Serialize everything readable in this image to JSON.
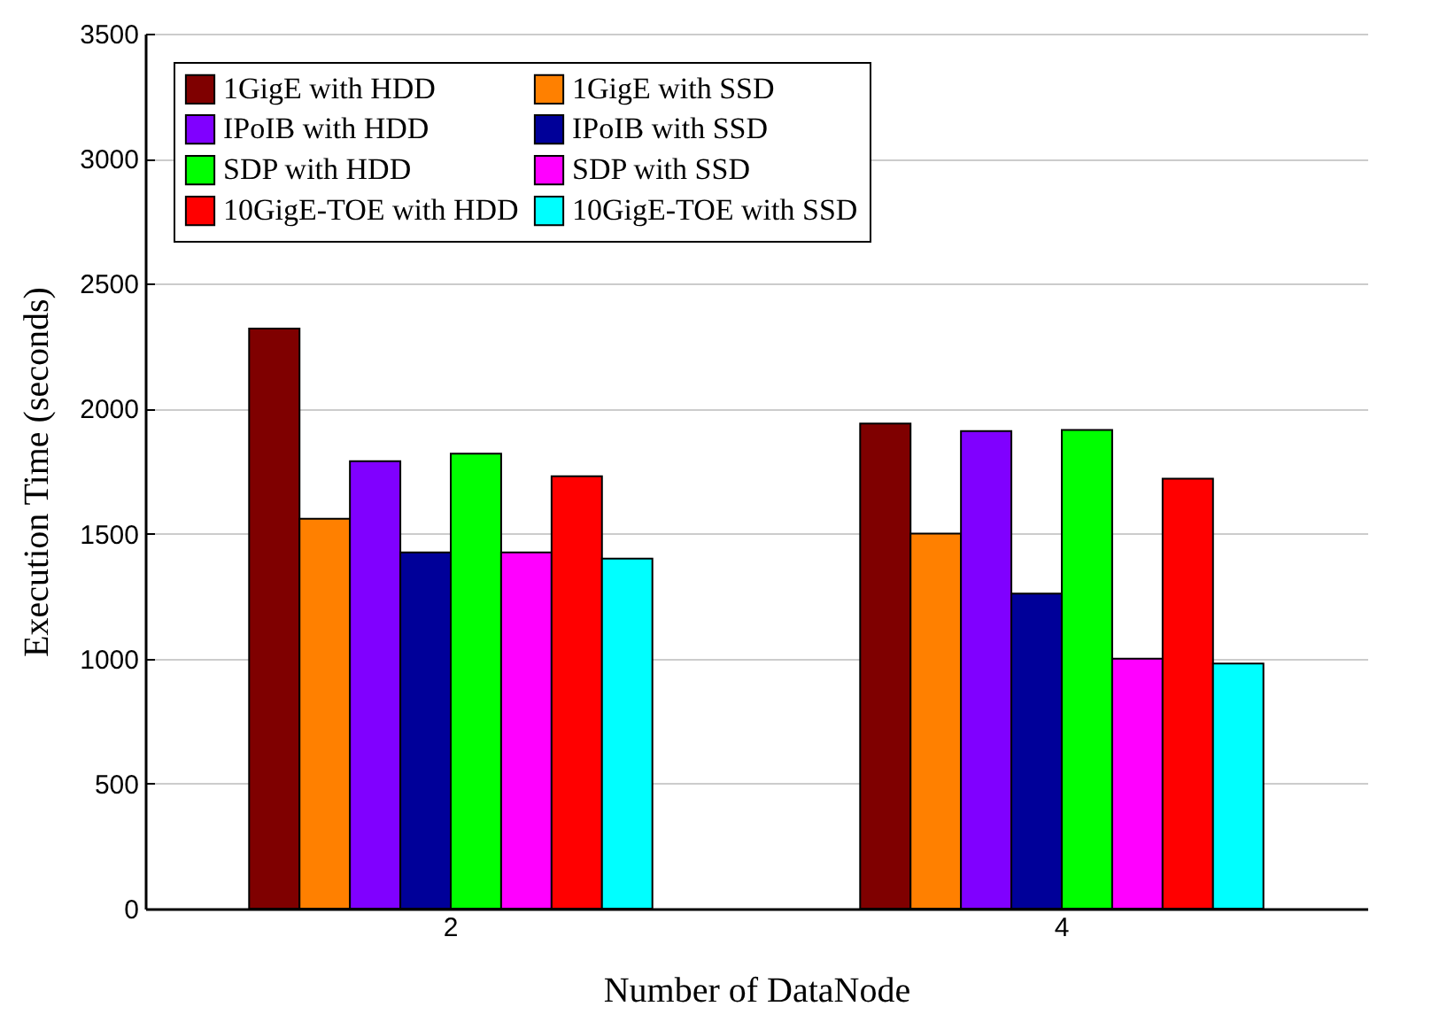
{
  "chart_data": {
    "type": "bar",
    "xlabel": "Number of DataNode",
    "ylabel": "Execution Time (seconds)",
    "categories": [
      "2",
      "4"
    ],
    "series": [
      {
        "name": "1GigE with HDD",
        "color": "#7f0000",
        "values": [
          2320,
          1940
        ]
      },
      {
        "name": "1GigE with SSD",
        "color": "#ff8000",
        "values": [
          1560,
          1500
        ]
      },
      {
        "name": "IPoIB with HDD",
        "color": "#8000ff",
        "values": [
          1790,
          1910
        ]
      },
      {
        "name": "IPoIB with SSD",
        "color": "#000099",
        "values": [
          1425,
          1260
        ]
      },
      {
        "name": "SDP with HDD",
        "color": "#00ff00",
        "values": [
          1820,
          1915
        ]
      },
      {
        "name": "SDP with SSD",
        "color": "#ff00ff",
        "values": [
          1425,
          1000
        ]
      },
      {
        "name": "10GigE-TOE with HDD",
        "color": "#ff0000",
        "values": [
          1730,
          1720
        ]
      },
      {
        "name": "10GigE-TOE with SSD",
        "color": "#00ffff",
        "values": [
          1400,
          980
        ]
      }
    ],
    "ylim": [
      0,
      3500
    ],
    "yticks": [
      0,
      500,
      1000,
      1500,
      2000,
      2500,
      3000,
      3500
    ],
    "grid": "y",
    "legend": "top left"
  }
}
